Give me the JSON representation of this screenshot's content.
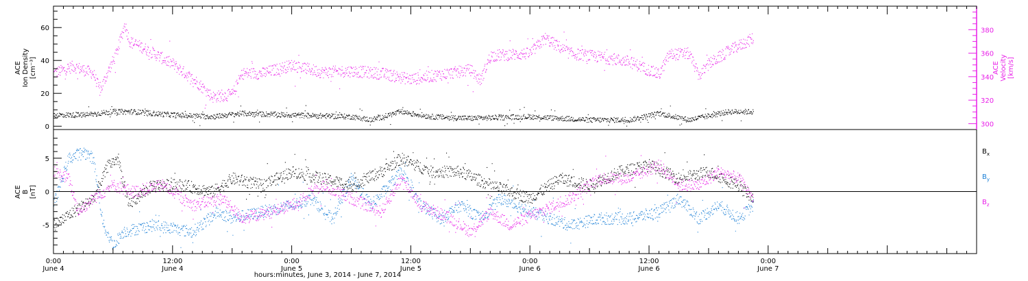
{
  "colors": {
    "black": "#000000",
    "blue": "#1a7fd6",
    "magenta": "#e81ee8"
  },
  "time": {
    "start": "2014-06-04T00:00",
    "end": "2014-06-07T21:00",
    "ticks": [
      {
        "time": "2014-06-04T00:00",
        "line1": "0:00",
        "line2": "June 4"
      },
      {
        "time": "2014-06-04T12:00",
        "line1": "12:00",
        "line2": "June 4"
      },
      {
        "time": "2014-06-05T00:00",
        "line1": "0:00",
        "line2": "June 5"
      },
      {
        "time": "2014-06-05T12:00",
        "line1": "12:00",
        "line2": "June 5"
      },
      {
        "time": "2014-06-06T00:00",
        "line1": "0:00",
        "line2": "June 6"
      },
      {
        "time": "2014-06-06T12:00",
        "line1": "12:00",
        "line2": "June 6"
      },
      {
        "time": "2014-06-07T00:00",
        "line1": "0:00",
        "line2": "June 7"
      }
    ],
    "xlabel": "hours:minutes, June  3, 2014 - June  7, 2014"
  },
  "chart_data": [
    {
      "type": "scatter",
      "panel": "top",
      "ylabel_left": [
        "ACE",
        "Ion Density",
        "[cm⁻³]"
      ],
      "ylabel_right": [
        "ACE",
        "Velocity",
        "[km/s]"
      ],
      "ylim_left": [
        -2,
        73
      ],
      "yticks_left": [
        0,
        20,
        40,
        60
      ],
      "ylim_right": [
        295,
        400
      ],
      "yticks_right": [
        300,
        320,
        340,
        360,
        380
      ],
      "grid": false,
      "series": [
        {
          "id": "density",
          "axis": "left",
          "color": "#000000",
          "points": [
            [
              "2014-06-04T00:00",
              7
            ],
            [
              "2014-06-04T03:00",
              7
            ],
            [
              "2014-06-04T06:00",
              9
            ],
            [
              "2014-06-04T08:00",
              9
            ],
            [
              "2014-06-04T12:00",
              7
            ],
            [
              "2014-06-04T16:00",
              6
            ],
            [
              "2014-06-04T19:00",
              8
            ],
            [
              "2014-06-05T00:00",
              7
            ],
            [
              "2014-06-05T06:00",
              6
            ],
            [
              "2014-06-05T08:00",
              4
            ],
            [
              "2014-06-05T11:00",
              9
            ],
            [
              "2014-06-05T14:00",
              6
            ],
            [
              "2014-06-05T18:00",
              5
            ],
            [
              "2014-06-06T00:00",
              6
            ],
            [
              "2014-06-06T06:00",
              4
            ],
            [
              "2014-06-06T10:00",
              4
            ],
            [
              "2014-06-06T13:00",
              8
            ],
            [
              "2014-06-06T16:00",
              4
            ],
            [
              "2014-06-06T20:00",
              9
            ],
            [
              "2014-06-06T22:30",
              9
            ]
          ]
        },
        {
          "id": "velocity",
          "axis": "right",
          "color": "#e81ee8",
          "points": [
            [
              "2014-06-04T00:00",
              343
            ],
            [
              "2014-06-04T02:00",
              349
            ],
            [
              "2014-06-04T04:00",
              343
            ],
            [
              "2014-06-04T04:40",
              328
            ],
            [
              "2014-06-04T05:20",
              342
            ],
            [
              "2014-06-04T06:20",
              360
            ],
            [
              "2014-06-04T07:10",
              385
            ],
            [
              "2014-06-04T07:40",
              370
            ],
            [
              "2014-06-04T09:00",
              365
            ],
            [
              "2014-06-04T12:00",
              351
            ],
            [
              "2014-06-04T14:30",
              335
            ],
            [
              "2014-06-04T16:00",
              323
            ],
            [
              "2014-06-04T18:00",
              325
            ],
            [
              "2014-06-04T19:00",
              343
            ],
            [
              "2014-06-04T21:00",
              343
            ],
            [
              "2014-06-05T00:00",
              350
            ],
            [
              "2014-06-05T03:00",
              344
            ],
            [
              "2014-06-05T06:00",
              345
            ],
            [
              "2014-06-05T09:00",
              343
            ],
            [
              "2014-06-05T12:00",
              338
            ],
            [
              "2014-06-05T15:00",
              342
            ],
            [
              "2014-06-05T18:00",
              346
            ],
            [
              "2014-06-05T19:00",
              337
            ],
            [
              "2014-06-05T20:00",
              358
            ],
            [
              "2014-06-06T00:00",
              360
            ],
            [
              "2014-06-06T01:30",
              373
            ],
            [
              "2014-06-06T04:00",
              360
            ],
            [
              "2014-06-06T07:00",
              357
            ],
            [
              "2014-06-06T10:00",
              353
            ],
            [
              "2014-06-06T13:00",
              342
            ],
            [
              "2014-06-06T14:00",
              359
            ],
            [
              "2014-06-06T16:00",
              360
            ],
            [
              "2014-06-06T17:00",
              341
            ],
            [
              "2014-06-06T18:00",
              351
            ],
            [
              "2014-06-06T20:00",
              362
            ],
            [
              "2014-06-06T22:30",
              373
            ]
          ]
        }
      ]
    },
    {
      "type": "scatter",
      "panel": "bottom",
      "ylabel_left": [
        "ACE",
        "B",
        "[nT]"
      ],
      "ylim": [
        -9.3,
        9.3
      ],
      "yticks": [
        -5,
        0,
        5
      ],
      "zero_line": true,
      "grid": false,
      "legend_position": "right",
      "series": [
        {
          "id": "bx",
          "name": "B",
          "sub": "x",
          "color": "#000000",
          "points": [
            [
              "2014-06-04T00:00",
              -5
            ],
            [
              "2014-06-04T02:00",
              -3
            ],
            [
              "2014-06-04T04:00",
              -1
            ],
            [
              "2014-06-04T05:30",
              4
            ],
            [
              "2014-06-04T06:30",
              5
            ],
            [
              "2014-06-04T07:30",
              -2
            ],
            [
              "2014-06-04T10:00",
              1
            ],
            [
              "2014-06-04T13:00",
              1
            ],
            [
              "2014-06-04T16:00",
              0
            ],
            [
              "2014-06-04T18:00",
              2
            ],
            [
              "2014-06-04T21:00",
              1
            ],
            [
              "2014-06-05T00:00",
              3
            ],
            [
              "2014-06-05T03:00",
              2
            ],
            [
              "2014-06-05T06:00",
              1
            ],
            [
              "2014-06-05T09:00",
              3
            ],
            [
              "2014-06-05T11:00",
              5
            ],
            [
              "2014-06-05T14:00",
              3
            ],
            [
              "2014-06-05T17:00",
              3
            ],
            [
              "2014-06-05T20:00",
              1
            ],
            [
              "2014-06-06T00:00",
              -1
            ],
            [
              "2014-06-06T03:00",
              2
            ],
            [
              "2014-06-06T06:00",
              1
            ],
            [
              "2014-06-06T09:00",
              3
            ],
            [
              "2014-06-06T12:00",
              4
            ],
            [
              "2014-06-06T15:00",
              2
            ],
            [
              "2014-06-06T18:00",
              3
            ],
            [
              "2014-06-06T21:00",
              1
            ],
            [
              "2014-06-06T22:30",
              -1
            ]
          ]
        },
        {
          "id": "by",
          "name": "B",
          "sub": "y",
          "color": "#1a7fd6",
          "points": [
            [
              "2014-06-04T00:00",
              -2
            ],
            [
              "2014-06-04T01:30",
              5
            ],
            [
              "2014-06-04T03:00",
              6
            ],
            [
              "2014-06-04T04:00",
              5
            ],
            [
              "2014-06-04T05:00",
              -5
            ],
            [
              "2014-06-04T06:00",
              -8
            ],
            [
              "2014-06-04T07:00",
              -6
            ],
            [
              "2014-06-04T10:00",
              -5
            ],
            [
              "2014-06-04T14:00",
              -6
            ],
            [
              "2014-06-04T16:30",
              -3
            ],
            [
              "2014-06-04T18:00",
              -4
            ],
            [
              "2014-06-04T21:00",
              -3
            ],
            [
              "2014-06-05T00:00",
              -2
            ],
            [
              "2014-06-05T02:00",
              -1
            ],
            [
              "2014-06-05T04:00",
              -4
            ],
            [
              "2014-06-05T06:00",
              2
            ],
            [
              "2014-06-05T08:00",
              -2
            ],
            [
              "2014-06-05T11:00",
              3
            ],
            [
              "2014-06-05T13:00",
              -2
            ],
            [
              "2014-06-05T15:00",
              -4
            ],
            [
              "2014-06-05T17:00",
              -2
            ],
            [
              "2014-06-05T19:00",
              -4
            ],
            [
              "2014-06-05T21:00",
              -1
            ],
            [
              "2014-06-06T00:00",
              -3
            ],
            [
              "2014-06-06T02:00",
              -4
            ],
            [
              "2014-06-06T04:00",
              -5
            ],
            [
              "2014-06-06T07:00",
              -4
            ],
            [
              "2014-06-06T10:00",
              -4
            ],
            [
              "2014-06-06T13:00",
              -3
            ],
            [
              "2014-06-06T15:00",
              -1
            ],
            [
              "2014-06-06T17:00",
              -4
            ],
            [
              "2014-06-06T19:00",
              -2
            ],
            [
              "2014-06-06T21:00",
              -4
            ],
            [
              "2014-06-06T22:30",
              -2
            ]
          ]
        },
        {
          "id": "bz",
          "name": "B",
          "sub": "z",
          "color": "#e81ee8",
          "points": [
            [
              "2014-06-04T00:00",
              3
            ],
            [
              "2014-06-04T01:30",
              2
            ],
            [
              "2014-06-04T02:30",
              -3
            ],
            [
              "2014-06-04T04:00",
              -1
            ],
            [
              "2014-06-04T06:00",
              1
            ],
            [
              "2014-06-04T08:00",
              0
            ],
            [
              "2014-06-04T11:00",
              1
            ],
            [
              "2014-06-04T14:00",
              -2
            ],
            [
              "2014-06-04T17:00",
              -1
            ],
            [
              "2014-06-04T19:00",
              -4
            ],
            [
              "2014-06-04T22:00",
              -3
            ],
            [
              "2014-06-05T00:00",
              -2
            ],
            [
              "2014-06-05T03:00",
              1
            ],
            [
              "2014-06-05T06:00",
              -1
            ],
            [
              "2014-06-05T09:00",
              -3
            ],
            [
              "2014-06-05T11:00",
              2
            ],
            [
              "2014-06-05T13:00",
              -2
            ],
            [
              "2014-06-05T16:00",
              -4
            ],
            [
              "2014-06-05T18:00",
              -6
            ],
            [
              "2014-06-05T20:00",
              -3
            ],
            [
              "2014-06-05T22:00",
              -5
            ],
            [
              "2014-06-06T01:00",
              -3
            ],
            [
              "2014-06-06T04:00",
              -1
            ],
            [
              "2014-06-06T07:00",
              2
            ],
            [
              "2014-06-06T10:00",
              2
            ],
            [
              "2014-06-06T13:00",
              4
            ],
            [
              "2014-06-06T15:00",
              1
            ],
            [
              "2014-06-06T17:00",
              1
            ],
            [
              "2014-06-06T19:00",
              3
            ],
            [
              "2014-06-06T21:00",
              2
            ],
            [
              "2014-06-06T22:30",
              -1
            ]
          ]
        }
      ]
    }
  ]
}
